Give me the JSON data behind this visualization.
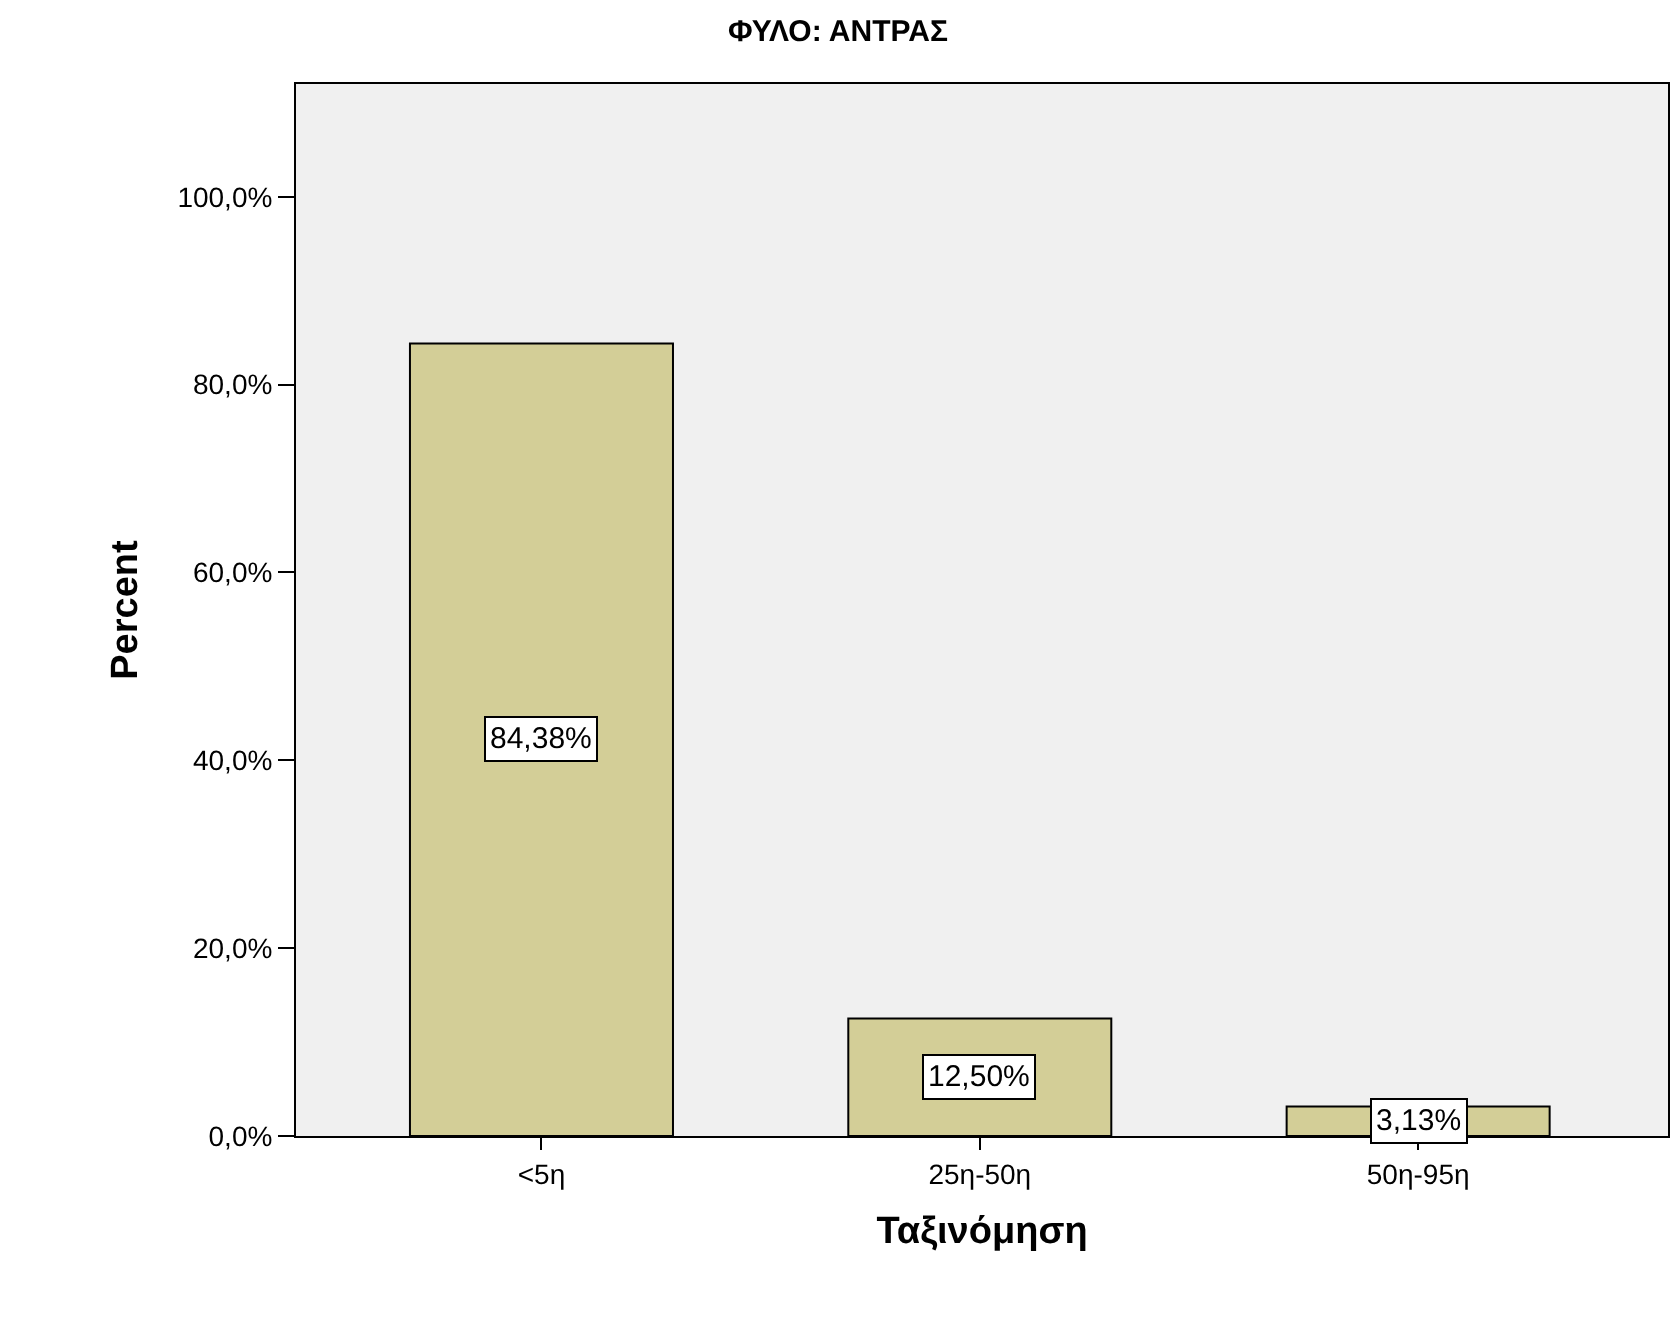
{
  "chart_data": {
    "type": "bar",
    "title": "ΦΥΛΟ: ΑΝΤΡΑΣ",
    "xlabel": "Ταξινόμηση",
    "ylabel": "Percent",
    "categories": [
      "<5η",
      "25η-50η",
      "50η-95η"
    ],
    "values": [
      84.38,
      12.5,
      3.13
    ],
    "color": "#d3ce97",
    "value_labels": [
      "84,38%",
      "12,50%",
      "3,13%"
    ],
    "ylim": [
      0,
      112
    ],
    "yticks": [
      {
        "value": 0,
        "label": "0,0%"
      },
      {
        "value": 20,
        "label": "20,0%"
      },
      {
        "value": 40,
        "label": "40,0%"
      },
      {
        "value": 60,
        "label": "60,0%"
      },
      {
        "value": 80,
        "label": "80,0%"
      },
      {
        "value": 100,
        "label": "100,0%"
      }
    ],
    "grid": false
  }
}
